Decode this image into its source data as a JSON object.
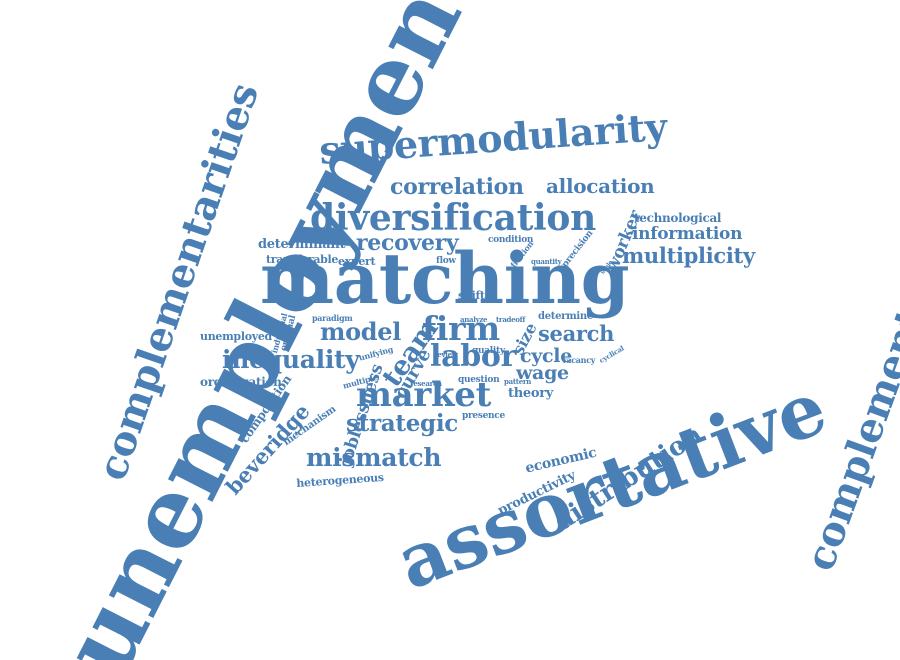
{
  "color": "#4a7fb5",
  "words": [
    {
      "text": "unemployment"
    },
    {
      "text": "matching"
    },
    {
      "text": "assortative"
    },
    {
      "text": "complementarities"
    },
    {
      "text": "complementarity"
    },
    {
      "text": "supermodularity"
    },
    {
      "text": "diversification"
    },
    {
      "text": "correlation"
    },
    {
      "text": "allocation"
    },
    {
      "text": "recovery"
    },
    {
      "text": "determinant"
    },
    {
      "text": "information"
    },
    {
      "text": "multiplicity"
    },
    {
      "text": "technological"
    },
    {
      "text": "worker"
    },
    {
      "text": "transferable"
    },
    {
      "text": "expert"
    },
    {
      "text": "condition"
    },
    {
      "text": "flow"
    },
    {
      "text": "friction"
    },
    {
      "text": "precision"
    },
    {
      "text": "quantity"
    },
    {
      "text": "shift"
    },
    {
      "text": "firm"
    },
    {
      "text": "model"
    },
    {
      "text": "team"
    },
    {
      "text": "search"
    },
    {
      "text": "unemployed"
    },
    {
      "text": "industrial"
    },
    {
      "text": "optimal"
    },
    {
      "text": "paradigm"
    },
    {
      "text": "analyze"
    },
    {
      "text": "tradeoff"
    },
    {
      "text": "determine"
    },
    {
      "text": "inequality"
    },
    {
      "text": "labor"
    },
    {
      "text": "cycle"
    },
    {
      "text": "size"
    },
    {
      "text": "wage"
    },
    {
      "text": "curve"
    },
    {
      "text": "unifying"
    },
    {
      "text": "review"
    },
    {
      "text": "quality"
    },
    {
      "text": "vacancy"
    },
    {
      "text": "cyclical"
    },
    {
      "text": "organization"
    },
    {
      "text": "multiple"
    },
    {
      "text": "research"
    },
    {
      "text": "question"
    },
    {
      "text": "pattern"
    },
    {
      "text": "market"
    },
    {
      "text": "theory"
    },
    {
      "text": "joblessness"
    },
    {
      "text": "beveridge"
    },
    {
      "text": "composition"
    },
    {
      "text": "mechanism"
    },
    {
      "text": "presence"
    },
    {
      "text": "strategic"
    },
    {
      "text": "distribution"
    },
    {
      "text": "mismatch"
    },
    {
      "text": "economic"
    },
    {
      "text": "productivity"
    },
    {
      "text": "heterogeneous"
    },
    {
      "text": "scale"
    }
  ]
}
